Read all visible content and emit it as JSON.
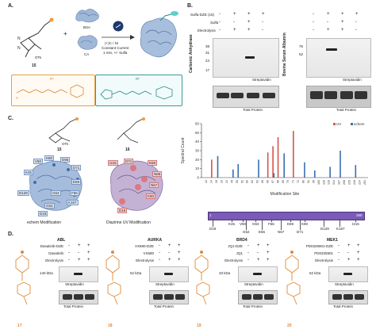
{
  "panel_labels": {
    "a": "A.",
    "b": "B.",
    "c": "C.",
    "d": "D."
  },
  "panel_a": {
    "compound_15": "15",
    "plus": "+",
    "bsa": "BSA",
    "ca": "CA",
    "conditions": [
      "(+)C / Ni",
      "Constant Current",
      "1 min, +/- Sulfa"
    ],
    "ots": "OTs",
    "legend_r1": "R¹",
    "legend_r2": "R²",
    "r_label": "R"
  },
  "panel_b": {
    "row_labels": [
      "Sulfa-DZE (15)",
      "Sulfa",
      "Electrolysis"
    ],
    "left_signs": [
      [
        "-",
        "+",
        "+",
        "+"
      ],
      [
        "-",
        "-",
        "+",
        "-"
      ],
      [
        "-",
        "+",
        "+",
        "-"
      ]
    ],
    "right_signs": [
      [
        "-",
        "+",
        "+",
        "+"
      ],
      [
        "-",
        "-",
        "+",
        "-"
      ],
      [
        "-",
        "+",
        "+",
        "-"
      ]
    ],
    "ladder_left": [
      "38",
      "31",
      "24",
      "17"
    ],
    "ladder_right": [
      "76",
      "52"
    ],
    "left_protein": "Carbonic Anhydrase",
    "right_protein": "Bovine Serum Albumin",
    "strep": "Streptavidin",
    "total": "Total Protein"
  },
  "panel_c": {
    "compound_15": "15",
    "compound_16": "16",
    "ots": "OTs",
    "residues_left": [
      "K80",
      "V50",
      "D95",
      "K45",
      "D71",
      "G63",
      "D129",
      "E69",
      "F66",
      "G63",
      "K167",
      "D19"
    ],
    "residues_right": [
      "I215",
      "D71",
      "E68",
      "N66",
      "N67",
      "K80",
      "D19"
    ],
    "caption_left": "echem Modification",
    "caption_right": "Diazirine UV Modification",
    "seq_start": "1",
    "seq_end": "260",
    "seq_sites": [
      "D19",
      "K45",
      "V50",
      "G52",
      "G63",
      "E66",
      "F66",
      "N67",
      "E69",
      "D71",
      "K80",
      "D129",
      "K167",
      "I215"
    ]
  },
  "chart_data": {
    "type": "bar",
    "ylabel": "Spectral Count",
    "xlabel": "Modification Site",
    "yticks": [
      "0",
      "10",
      "20",
      "30",
      "40",
      "50",
      "60"
    ],
    "ylim": [
      0,
      60
    ],
    "legend": [
      "UV",
      "echem"
    ],
    "legend_placement": "top-right",
    "categories": [
      "12",
      "14",
      "19",
      "23",
      "24",
      "45",
      "50",
      "52",
      "60",
      "62",
      "63",
      "65",
      "66",
      "67",
      "68",
      "69",
      "70",
      "71",
      "72",
      "80",
      "91",
      "95",
      "105",
      "126",
      "129",
      "134",
      "167",
      "208",
      "215",
      "216",
      "224",
      "251"
    ],
    "series": [
      {
        "name": "UV",
        "color": "#d9534f",
        "values": [
          0,
          20,
          0,
          0,
          0,
          0,
          0,
          0,
          0,
          0,
          0,
          0,
          28,
          35,
          45,
          0,
          0,
          52,
          0,
          0,
          0,
          0,
          0,
          0,
          0,
          0,
          0,
          0,
          0,
          0,
          0,
          0
        ]
      },
      {
        "name": "echem",
        "color": "#3a6fb0",
        "values": [
          0,
          0,
          24,
          0,
          0,
          9,
          15,
          0,
          0,
          0,
          20,
          0,
          0,
          5,
          0,
          27,
          0,
          0,
          0,
          17,
          0,
          8,
          0,
          0,
          12,
          0,
          30,
          0,
          0,
          14,
          0,
          0
        ]
      }
    ]
  },
  "panel_d": {
    "sections": [
      {
        "title": "ABL",
        "rows": [
          "Dasatinib-DZE",
          "Dasatinib",
          "Electrolysis"
        ],
        "signs": [
          [
            "-",
            "+",
            "+"
          ],
          [
            "-",
            "-",
            "+"
          ],
          [
            "-",
            "+",
            "+"
          ]
        ],
        "kda": "140 kDa",
        "strep": "Streptavidin",
        "total": "Total Protein",
        "num": "17"
      },
      {
        "title": "AURKA",
        "rows": [
          "VX680-DZE",
          "VX680",
          "Electrolysis"
        ],
        "signs": [
          [
            "-",
            "+",
            "+"
          ],
          [
            "-",
            "-",
            "+"
          ],
          [
            "-",
            "+",
            "+"
          ]
        ],
        "kda": "52 kDa",
        "strep": "Streptavidin",
        "total": "Total Protein",
        "num": "18"
      },
      {
        "title": "BRD4",
        "rows": [
          "JQ1-DZE",
          "JQ1",
          "Electrolysis"
        ],
        "signs": [
          [
            "-",
            "+",
            "+"
          ],
          [
            "-",
            "-",
            "+"
          ],
          [
            "-",
            "+",
            "+"
          ]
        ],
        "kda": "33 kDa",
        "strep": "Streptavidin",
        "total": "Total Protein",
        "num": "19"
      },
      {
        "title": "MEK1",
        "rows": [
          "PD0325901-DZE",
          "PD0325901",
          "Electrolysis"
        ],
        "signs": [
          [
            "-",
            "+",
            "+"
          ],
          [
            "-",
            "-",
            "+"
          ],
          [
            "-",
            "+",
            "+"
          ]
        ],
        "kda": "52 kDa",
        "strep": "Streptavidin",
        "total": "Total Protein",
        "num": "20"
      }
    ]
  }
}
